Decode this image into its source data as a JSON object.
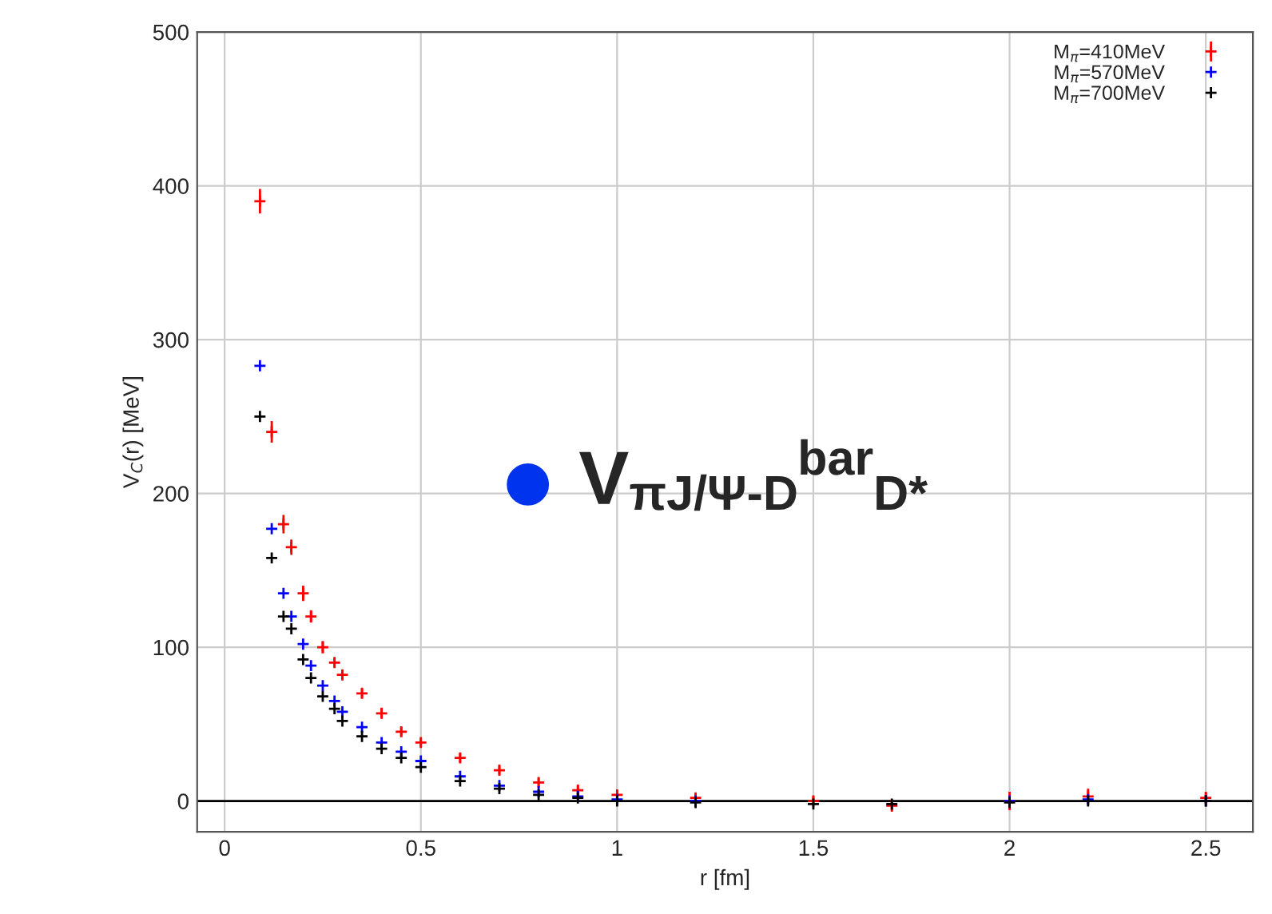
{
  "chart_data": {
    "type": "scatter",
    "xlabel": "r [fm]",
    "ylabel": "V$_{C}$(r) [MeV]",
    "xlim": [
      -0.07,
      2.62
    ],
    "ylim": [
      -20,
      500
    ],
    "xticks": [
      0,
      0.5,
      1,
      1.5,
      2,
      2.5
    ],
    "yticks": [
      0,
      100,
      200,
      300,
      400,
      500
    ],
    "grid": true,
    "legend": "top right",
    "marker": "cross",
    "annotations": [
      "V$_{πJ/Ψ-D}$$^{bar}$$_{D*}$"
    ],
    "ref_lines": [
      {
        "axis": "y",
        "value": 0,
        "color": "#000000"
      }
    ],
    "x": [
      0.09,
      0.12,
      0.15,
      0.17,
      0.2,
      0.22,
      0.25,
      0.28,
      0.3,
      0.35,
      0.4,
      0.45,
      0.5,
      0.6,
      0.7,
      0.8,
      0.9,
      1.0,
      1.2,
      1.5,
      1.7,
      2.0,
      2.2,
      2.5
    ],
    "series": [
      {
        "name": "M$_{π}$=410MeV",
        "color": "#ff0000",
        "values": [
          390,
          240,
          180,
          165,
          135,
          120,
          100,
          90,
          82,
          70,
          57,
          45,
          38,
          28,
          20,
          12,
          7,
          4,
          2,
          0,
          -3,
          0,
          3,
          2
        ],
        "errors": [
          8,
          7,
          6,
          5,
          5,
          4,
          4,
          3,
          3,
          3,
          3,
          3,
          3,
          3,
          3,
          3,
          3,
          3,
          3,
          3,
          4,
          6,
          5,
          4
        ]
      },
      {
        "name": "M$_{π}$=570MeV",
        "color": "#0000ff",
        "values": [
          283,
          177,
          135,
          120,
          102,
          88,
          75,
          65,
          58,
          48,
          38,
          32,
          26,
          16,
          10,
          6,
          3,
          1,
          0,
          null,
          null,
          0,
          1,
          0
        ]
      },
      {
        "name": "M$_{π}$=700MeV",
        "color": "#000000",
        "values": [
          250,
          158,
          120,
          112,
          92,
          80,
          68,
          60,
          52,
          42,
          34,
          28,
          22,
          13,
          8,
          4,
          2,
          0,
          -1,
          -2,
          -2,
          -1,
          0,
          0
        ]
      }
    ]
  }
}
